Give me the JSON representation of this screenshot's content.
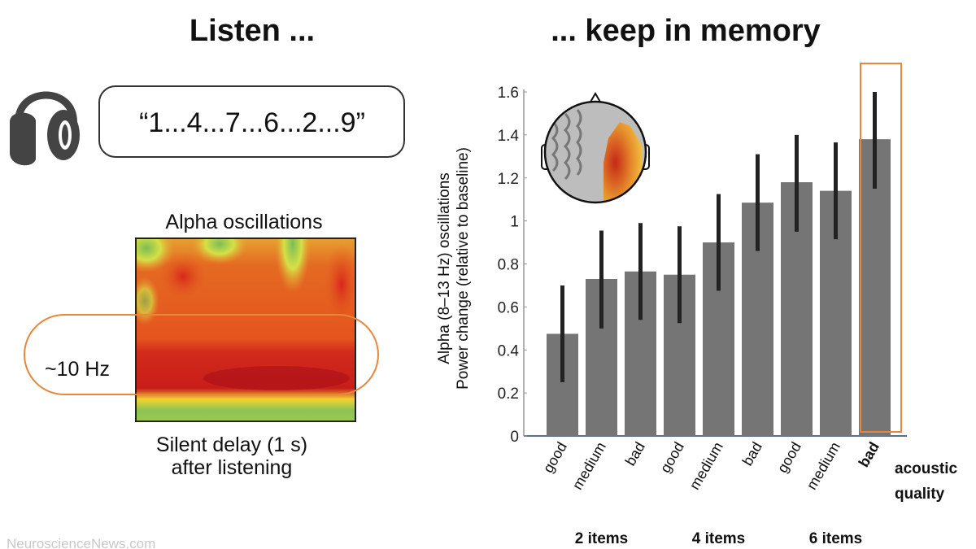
{
  "left": {
    "title": "Listen ...",
    "sequence": "“1...4...7...6...2...9”",
    "heatmap_title": "Alpha oscillations",
    "band_label": "~10 Hz",
    "caption_line1": "Silent delay (1 s)",
    "caption_line2": "after listening",
    "icon": "headphones-icon"
  },
  "right": {
    "title": "... keep in memory"
  },
  "watermark": "NeuroscienceNews.com",
  "colors": {
    "bar": "#757575",
    "error": "#222222",
    "highlight": "#e8873a"
  },
  "chart_data": {
    "type": "bar",
    "ylabel_line1": "Alpha (8–13 Hz) oscillations",
    "ylabel_line2": "Power change (relative to baseline)",
    "ylim": [
      0,
      1.6
    ],
    "yticks": [
      "0",
      "0.2",
      "0.4",
      "0.6",
      "0.8",
      "1",
      "1.2",
      "1.4",
      "1.6"
    ],
    "categories": [
      "good",
      "medium",
      "bad",
      "good",
      "medium",
      "bad",
      "good",
      "medium",
      "bad"
    ],
    "category_axis_label_line1": "acoustic",
    "category_axis_label_line2": "quality",
    "groups": [
      "2 items",
      "4 items",
      "6 items"
    ],
    "values": [
      0.475,
      0.73,
      0.765,
      0.75,
      0.9,
      1.085,
      1.18,
      1.14,
      1.38
    ],
    "error_low": [
      0.25,
      0.5,
      0.54,
      0.525,
      0.675,
      0.86,
      0.95,
      0.915,
      1.15
    ],
    "error_high": [
      0.7,
      0.955,
      0.99,
      0.975,
      1.125,
      1.31,
      1.4,
      1.365,
      1.6
    ],
    "highlighted_index": 8,
    "grid": false,
    "legend": "none"
  }
}
